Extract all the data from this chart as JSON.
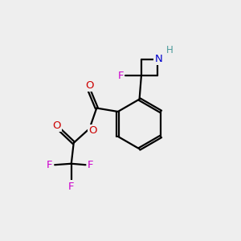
{
  "background_color": "#eeeeee",
  "atom_colors": {
    "C": "#000000",
    "N": "#0000cc",
    "H": "#4a9a9a",
    "O": "#cc0000",
    "F": "#cc00cc"
  },
  "figsize": [
    3.0,
    3.0
  ],
  "dpi": 100
}
